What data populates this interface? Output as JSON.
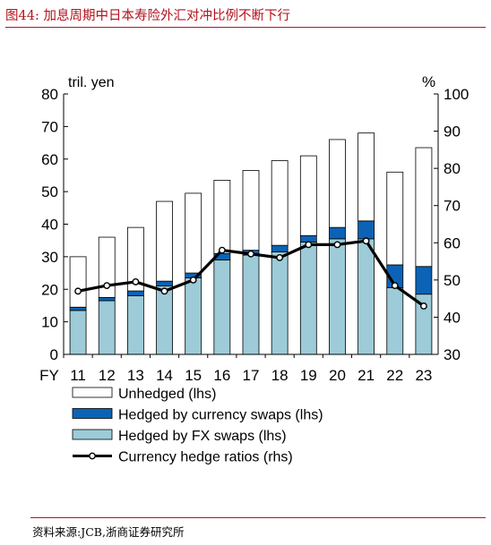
{
  "figure_title": "图44:   加息周期中日本寿险外汇对冲比例不断下行",
  "source": "资料来源:JCB,浙商证券研究所",
  "chart_data": {
    "type": "bar",
    "stacked": true,
    "left_unit": "tril. yen",
    "right_unit": "%",
    "x_prefix": "FY",
    "categories": [
      "11",
      "12",
      "13",
      "14",
      "15",
      "16",
      "17",
      "18",
      "19",
      "20",
      "21",
      "22",
      "23"
    ],
    "left_axis": {
      "min": 0,
      "max": 80,
      "ticks": [
        0,
        10,
        20,
        30,
        40,
        50,
        60,
        70,
        80
      ]
    },
    "right_axis": {
      "min": 30,
      "max": 100,
      "ticks": [
        30,
        40,
        50,
        60,
        70,
        80,
        90,
        100
      ]
    },
    "series": [
      {
        "name": "Hedged by FX swaps (lhs)",
        "kind": "bar",
        "color": "#9dcbd8",
        "values": [
          13.5,
          16.5,
          18.0,
          21.0,
          23.5,
          29.0,
          30.5,
          31.5,
          34.5,
          35.5,
          35.5,
          20.5,
          18.5
        ]
      },
      {
        "name": "Hedged by currency swaps (lhs)",
        "kind": "bar",
        "color": "#0c63b5",
        "values": [
          1.0,
          1.0,
          1.5,
          1.5,
          1.5,
          2.0,
          1.5,
          2.0,
          2.0,
          3.5,
          5.5,
          7.0,
          8.5
        ]
      },
      {
        "name": "Unhedged (lhs)",
        "kind": "bar",
        "color": "#ffffff",
        "values": [
          15.5,
          18.5,
          19.5,
          24.5,
          24.5,
          22.5,
          24.5,
          26.0,
          24.5,
          27.0,
          27.0,
          28.5,
          36.5
        ]
      },
      {
        "name": "Currency hedge ratios (rhs)",
        "kind": "line",
        "axis": "right",
        "color": "#000000",
        "values": [
          47.0,
          48.5,
          49.5,
          47.0,
          50.0,
          58.0,
          57.0,
          56.0,
          59.5,
          59.5,
          60.5,
          48.5,
          43.0
        ]
      }
    ],
    "legend_order": [
      "Unhedged (lhs)",
      "Hedged by currency swaps (lhs)",
      "Hedged by FX swaps (lhs)",
      "Currency hedge ratios (rhs)"
    ],
    "legend_position": "bottom-left"
  }
}
